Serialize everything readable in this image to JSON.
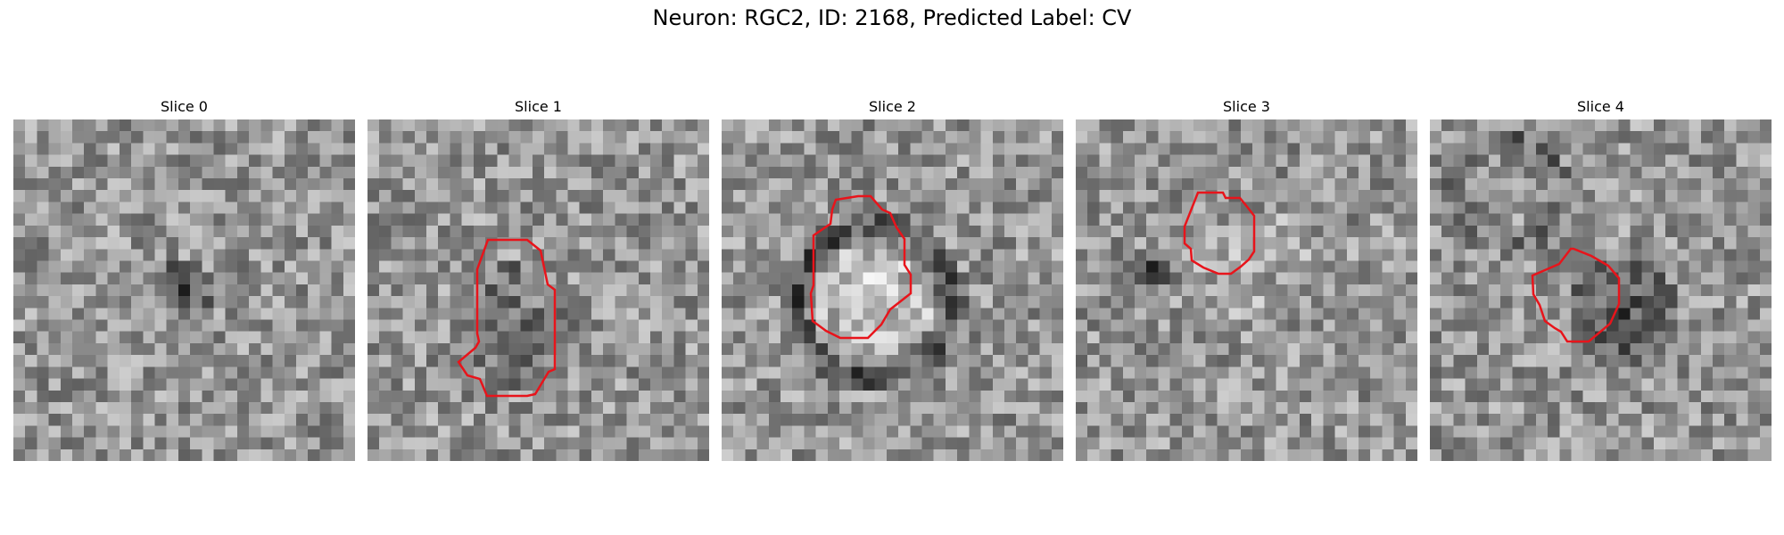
{
  "figure": {
    "title": "Neuron: RGC2, ID: 2168, Predicted Label: CV"
  },
  "colors": {
    "contour": "#e8141b",
    "background": "#ffffff"
  },
  "panels": [
    {
      "title": "Slice 0",
      "has_contour": false
    },
    {
      "title": "Slice 1",
      "has_contour": true
    },
    {
      "title": "Slice 2",
      "has_contour": true
    },
    {
      "title": "Slice 3",
      "has_contour": true
    },
    {
      "title": "Slice 4",
      "has_contour": true
    }
  ]
}
